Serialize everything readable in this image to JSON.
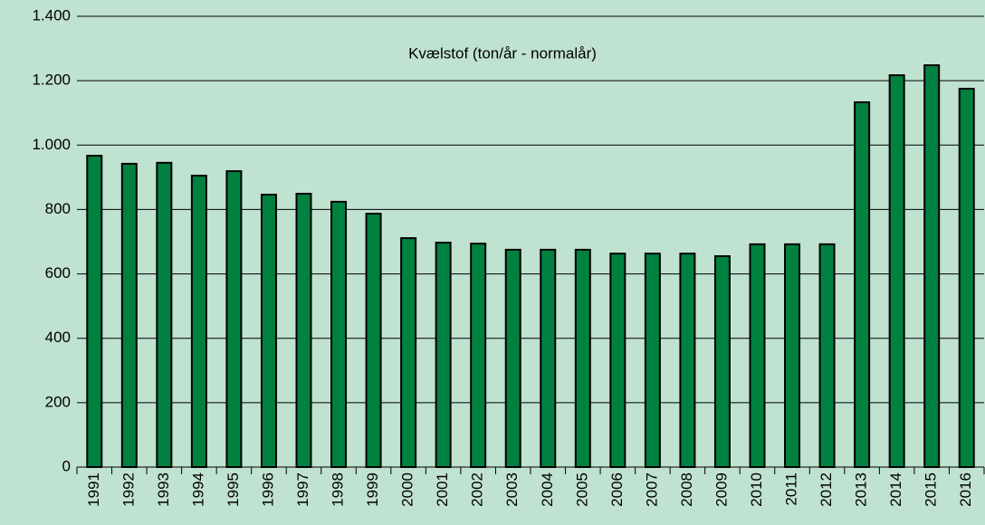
{
  "chart_data": {
    "type": "bar",
    "title": "Kvælstof (ton/år - normalår)",
    "categories": [
      "1991",
      "1992",
      "1993",
      "1994",
      "1995",
      "1996",
      "1997",
      "1998",
      "1999",
      "2000",
      "2001",
      "2002",
      "2003",
      "2004",
      "2005",
      "2006",
      "2007",
      "2008",
      "2009",
      "2010",
      "2011",
      "2012",
      "2013",
      "2014",
      "2015",
      "2016"
    ],
    "values": [
      967,
      942,
      945,
      905,
      919,
      846,
      849,
      824,
      787,
      711,
      697,
      694,
      675,
      675,
      675,
      663,
      663,
      663,
      655,
      692,
      692,
      692,
      1133,
      1217,
      1248,
      1175
    ],
    "color": "#00813f",
    "ylim": [
      0,
      1400
    ],
    "yticks": [
      0,
      200,
      400,
      600,
      800,
      {
        "value": 1000,
        "label": "1.000"
      },
      {
        "value": 1200,
        "label": "1.200"
      },
      {
        "value": 1400,
        "label": "1.400"
      }
    ],
    "grid": true
  }
}
